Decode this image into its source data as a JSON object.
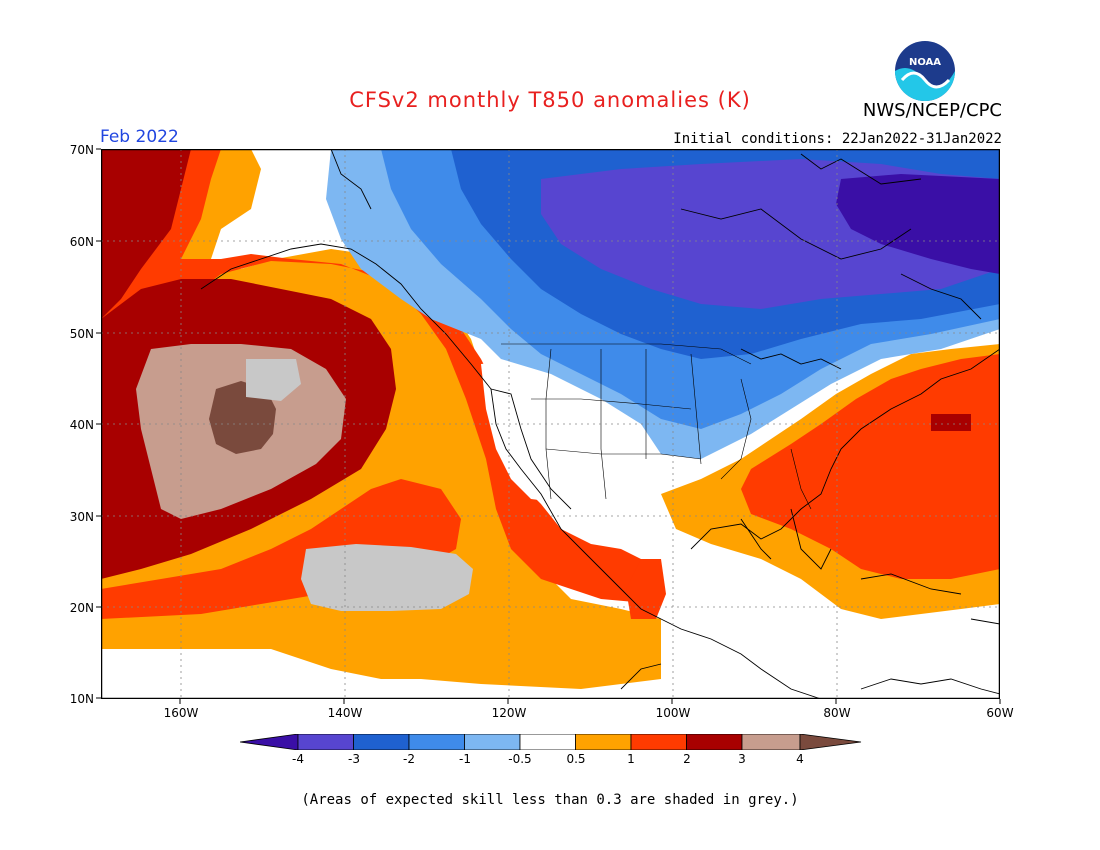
{
  "header": {
    "title": "CFSv2 monthly T850 anomalies (K)",
    "org": "NWS/NCEP/CPC",
    "logo_text": "NOAA",
    "period": "Feb 2022",
    "initial_conditions": "Initial conditions: 22Jan2022-31Jan2022"
  },
  "axes": {
    "lat_labels": [
      "70N",
      "60N",
      "50N",
      "40N",
      "30N",
      "20N",
      "10N"
    ],
    "lon_labels": [
      "160W",
      "140W",
      "120W",
      "100W",
      "80W",
      "60W"
    ]
  },
  "colorbar": {
    "ticks": [
      "-4",
      "-3",
      "-2",
      "-1",
      "-0.5",
      "0.5",
      "1",
      "2",
      "3",
      "4"
    ],
    "colors": [
      "#3a0fa6",
      "#5745d0",
      "#1f61d0",
      "#3f8bea",
      "#7db7f2",
      "#ffffff",
      "#ffa200",
      "#ff3b00",
      "#a80000",
      "#c79d8e",
      "#7a4a3d"
    ]
  },
  "map": {
    "region": "North Pacific and North America, 10N-70N, 170W-60W",
    "grid_spacing_deg": 10,
    "colors": {
      "ocean_white": "#ffffff",
      "grey_low_skill": "#c8c8c8"
    }
  },
  "footnote": "(Areas of expected skill less than 0.3 are shaded in grey.)"
}
